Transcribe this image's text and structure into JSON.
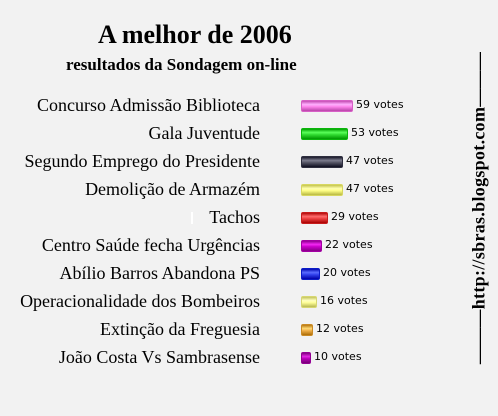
{
  "chart_data": {
    "type": "bar",
    "title": "A melhor de 2006",
    "subtitle": "resultados da Sondagem on-line",
    "categories": [
      "Concurso Admissão Biblioteca",
      "Gala Juventude",
      "Segundo Emprego do Presidente",
      "Demolição de Armazém",
      "Tachos",
      "Centro Saúde fecha Urgências",
      "Abílio Barros Abandona PS",
      "Operacionalidade dos Bombeiros",
      "Extinção da Freguesia",
      "João Costa Vs Sambrasense"
    ],
    "values": [
      59,
      53,
      47,
      47,
      29,
      22,
      20,
      16,
      12,
      10
    ],
    "value_labels": [
      "59 votes",
      "53 votes",
      "47 votes",
      "47 votes",
      "29 votes",
      "22 votes",
      "20 votes",
      "16 votes",
      "12 votes",
      "10 votes"
    ],
    "colors": [
      "#ff88ee",
      "#33dd33",
      "#555566",
      "#ffff88",
      "#ee4444",
      "#cc00cc",
      "#3344ee",
      "#ffff99",
      "#f2b24c",
      "#bb00bb"
    ],
    "orientation": "horizontal"
  },
  "sidebar": {
    "url": "———http://sbras.blogspot.com———"
  }
}
